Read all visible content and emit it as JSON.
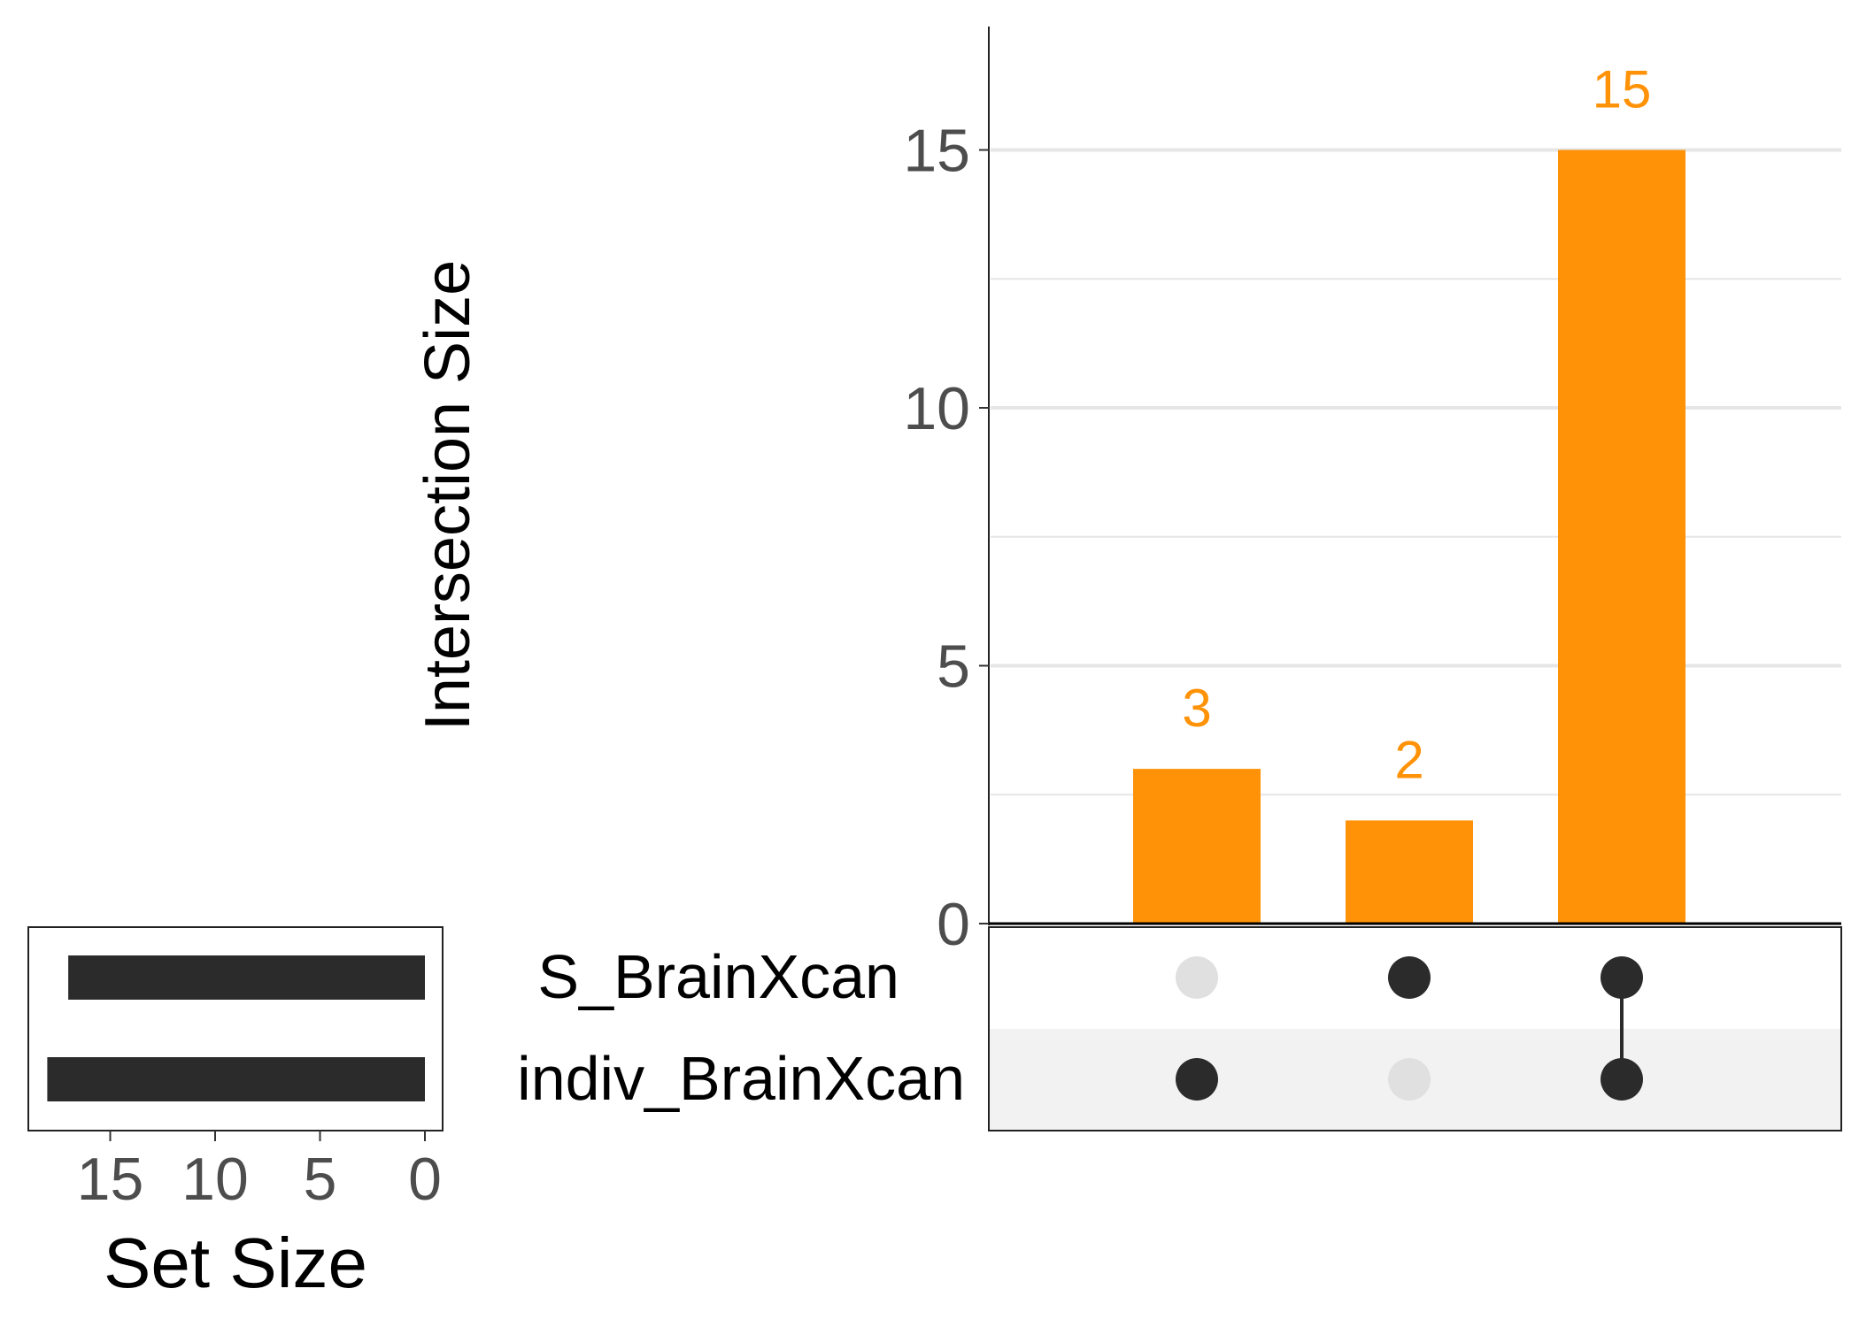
{
  "chart_data": [
    {
      "type": "bar",
      "ylabel": "Intersection Size",
      "ylim": [
        0,
        17.5
      ],
      "yticks": [
        "0",
        "5",
        "10",
        "15"
      ],
      "grid": true,
      "bar_color": "#FF9207",
      "label_color": "#FF9207",
      "categories": [
        "indiv_BrainXcan only",
        "S_BrainXcan only",
        "S_BrainXcan & indiv_BrainXcan"
      ],
      "values": [
        3,
        2,
        15
      ],
      "data_labels": [
        "3",
        "2",
        "15"
      ]
    },
    {
      "type": "bar",
      "orientation": "horizontal-reversed",
      "xlabel": "Set Size",
      "xlim": [
        18.5,
        0
      ],
      "xticks": [
        "15",
        "10",
        "5",
        "0"
      ],
      "bar_color": "#2B2B2B",
      "categories": [
        "S_BrainXcan",
        "indiv_BrainXcan"
      ],
      "values": [
        17,
        18
      ]
    }
  ],
  "matrix": {
    "sets": [
      "S_BrainXcan",
      "indiv_BrainXcan"
    ],
    "membership": [
      [
        false,
        true
      ],
      [
        true,
        false
      ],
      [
        true,
        true
      ]
    ],
    "active_color": "#2B2B2B",
    "inactive_color": "#E0E0E0"
  }
}
